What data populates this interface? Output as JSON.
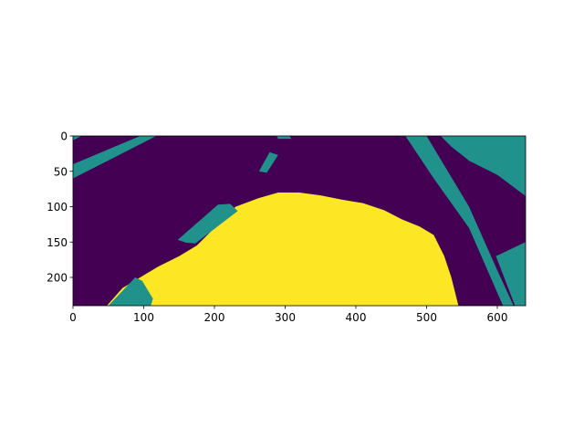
{
  "chart_data": {
    "type": "heatmap",
    "title": "",
    "xlabel": "",
    "ylabel": "",
    "xlim": [
      0,
      640
    ],
    "ylim": [
      240,
      0
    ],
    "grid": false,
    "image_width": 640,
    "image_height": 240,
    "colormap": "viridis",
    "class_values": [
      0,
      1,
      2
    ],
    "class_colors": [
      "#440154",
      "#21918c",
      "#fde725"
    ],
    "x_ticks": [
      0,
      100,
      200,
      300,
      400,
      500,
      600
    ],
    "y_ticks": [
      0,
      50,
      100,
      150,
      200
    ],
    "x_tick_labels": [
      "0",
      "100",
      "200",
      "300",
      "400",
      "500",
      "600"
    ],
    "y_tick_labels": [
      "0",
      "50",
      "100",
      "150",
      "200"
    ],
    "regions": [
      {
        "name": "road-marking-left-upper",
        "class": 1,
        "polygon": [
          [
            0,
            0
          ],
          [
            12,
            0
          ],
          [
            0,
            6
          ]
        ]
      },
      {
        "name": "road-marking-left-stripe",
        "class": 1,
        "polygon": [
          [
            0,
            40
          ],
          [
            95,
            0
          ],
          [
            118,
            0
          ],
          [
            0,
            60
          ]
        ]
      },
      {
        "name": "road-marking-center-top",
        "class": 1,
        "polygon": [
          [
            288,
            0
          ],
          [
            306,
            0
          ],
          [
            309,
            4
          ],
          [
            290,
            4
          ]
        ]
      },
      {
        "name": "road-marking-dash-small",
        "class": 1,
        "polygon": [
          [
            263,
            50
          ],
          [
            278,
            23
          ],
          [
            290,
            27
          ],
          [
            274,
            52
          ]
        ]
      },
      {
        "name": "right-lane-boundary",
        "class": 1,
        "polygon": [
          [
            470,
            0
          ],
          [
            500,
            0
          ],
          [
            560,
            100
          ],
          [
            600,
            190
          ],
          [
            623,
            240
          ],
          [
            608,
            240
          ],
          [
            560,
            130
          ],
          [
            510,
            60
          ]
        ]
      },
      {
        "name": "right-edge-band",
        "class": 1,
        "polygon": [
          [
            520,
            0
          ],
          [
            640,
            0
          ],
          [
            640,
            85
          ],
          [
            600,
            55
          ],
          [
            560,
            35
          ],
          [
            535,
            15
          ]
        ]
      },
      {
        "name": "right-lower-band",
        "class": 1,
        "polygon": [
          [
            598,
            170
          ],
          [
            640,
            150
          ],
          [
            640,
            240
          ],
          [
            625,
            240
          ]
        ]
      },
      {
        "name": "drivable-area",
        "class": 2,
        "polygon": [
          [
            48,
            240
          ],
          [
            70,
            215
          ],
          [
            95,
            200
          ],
          [
            120,
            185
          ],
          [
            150,
            170
          ],
          [
            175,
            155
          ],
          [
            190,
            140
          ],
          [
            210,
            120
          ],
          [
            230,
            100
          ],
          [
            262,
            88
          ],
          [
            290,
            80
          ],
          [
            320,
            80
          ],
          [
            350,
            84
          ],
          [
            380,
            90
          ],
          [
            410,
            95
          ],
          [
            440,
            105
          ],
          [
            465,
            118
          ],
          [
            490,
            128
          ],
          [
            510,
            140
          ],
          [
            525,
            170
          ],
          [
            535,
            200
          ],
          [
            545,
            240
          ]
        ]
      },
      {
        "name": "lane-marking-dash-mid",
        "class": 1,
        "polygon": [
          [
            148,
            147
          ],
          [
            205,
            97
          ],
          [
            222,
            96
          ],
          [
            233,
            106
          ],
          [
            173,
            152
          ],
          [
            160,
            151
          ]
        ]
      },
      {
        "name": "lane-marking-dash-low",
        "class": 1,
        "polygon": [
          [
            50,
            240
          ],
          [
            88,
            200
          ],
          [
            98,
            205
          ],
          [
            113,
            230
          ],
          [
            110,
            240
          ]
        ]
      }
    ]
  }
}
